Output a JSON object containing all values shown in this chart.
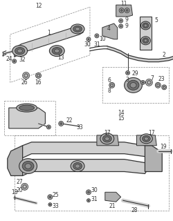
{
  "bg": "white",
  "lc": "#333333",
  "lc2": "#555555",
  "gray1": "#b0b0b0",
  "gray2": "#d0d0d0",
  "gray3": "#909090",
  "gray_dark": "#707070"
}
